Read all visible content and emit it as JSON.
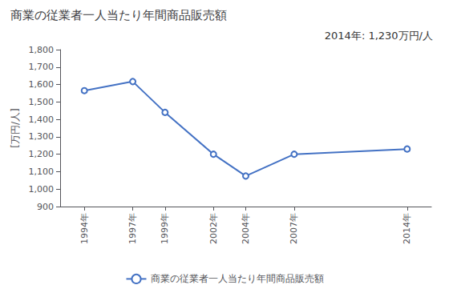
{
  "chart_data": {
    "type": "line",
    "title": "商業の従業者一人当たり年間商品販売額",
    "y_label": "[万円/人]",
    "annotation": "2014年: 1,230万円/人",
    "x": [
      1994,
      1997,
      1999,
      2002,
      2004,
      2007,
      2014
    ],
    "series": [
      {
        "name": "商業の従業者一人当たり年間商品販売額",
        "color": "#4472C4",
        "marker": "circle",
        "values": [
          1565,
          1617,
          1440,
          1200,
          1075,
          1200,
          1230
        ]
      }
    ],
    "xlim": [
      1992.5,
      2015.5
    ],
    "xticks": [
      {
        "value": 1994,
        "label": "1994年"
      },
      {
        "value": 1997,
        "label": "1997年"
      },
      {
        "value": 1999,
        "label": "1999年"
      },
      {
        "value": 2002,
        "label": "2002年"
      },
      {
        "value": 2004,
        "label": "2004年"
      },
      {
        "value": 2007,
        "label": "2007年"
      },
      {
        "value": 2014,
        "label": "2014年"
      }
    ],
    "ylim": [
      900,
      1800
    ],
    "yticks": [
      900,
      {
        "value": 1000,
        "label": "1,000"
      },
      {
        "value": 1100,
        "label": "1,100"
      },
      {
        "value": 1200,
        "label": "1,200"
      },
      {
        "value": 1300,
        "label": "1,300"
      },
      {
        "value": 1400,
        "label": "1,400"
      },
      {
        "value": 1500,
        "label": "1,500"
      },
      {
        "value": 1600,
        "label": "1,600"
      },
      {
        "value": 1700,
        "label": "1,700"
      },
      {
        "value": 1800,
        "label": "1,800"
      }
    ],
    "grid": false,
    "legend": "bottom"
  }
}
